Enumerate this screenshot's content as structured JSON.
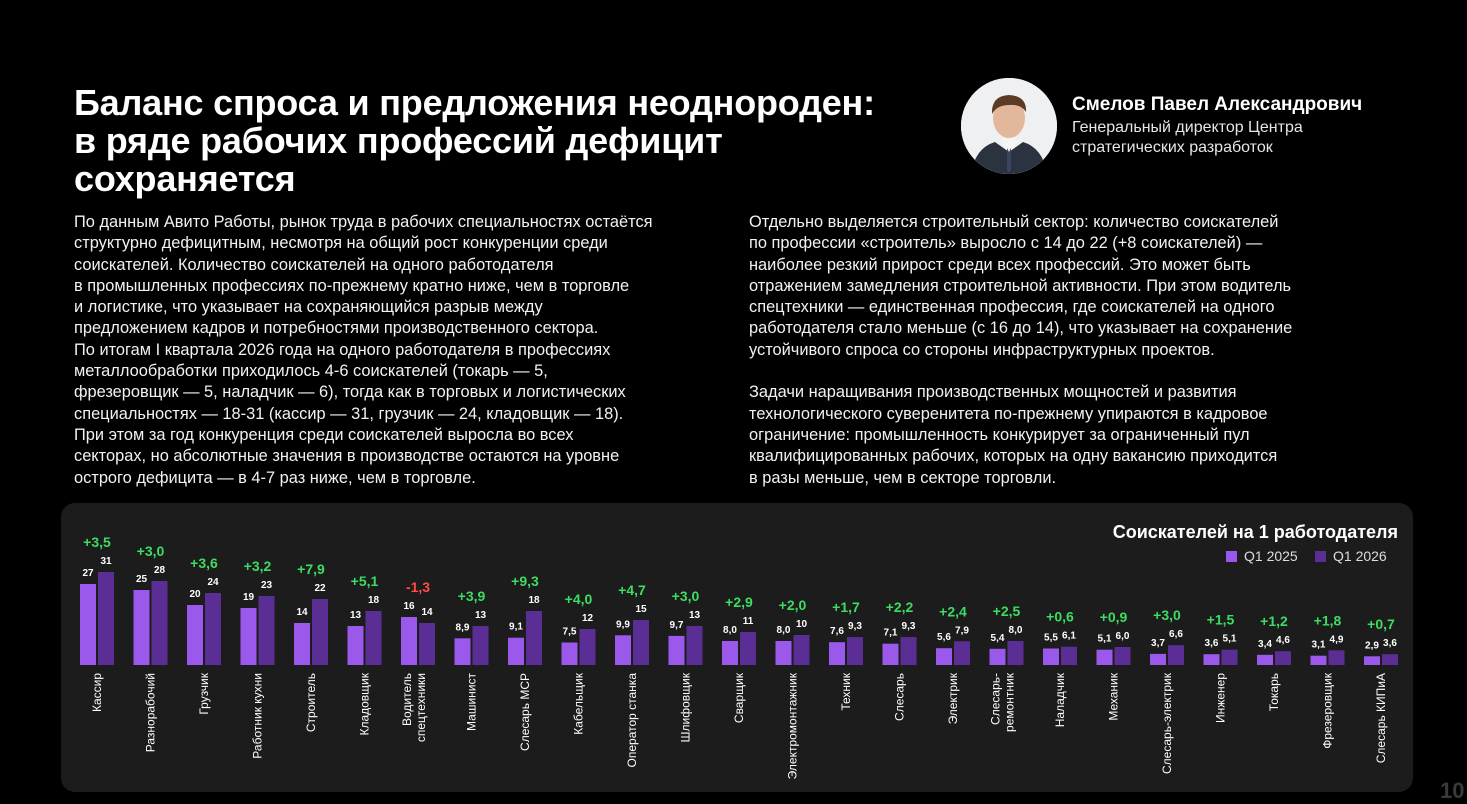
{
  "title_lines": [
    "Баланс спроса и предложения неоднороден:",
    "в ряде рабочих профессий дефицит",
    "сохраняется"
  ],
  "person": {
    "name": "Смелов Павел Александрович",
    "role_lines": [
      "Генеральный директор Центра",
      "стратегических разработок"
    ]
  },
  "left_text_lines": [
    "По данным Авито Работы, рынок труда в рабочих специальностях остаётся",
    "структурно дефицитным, несмотря на общий рост конкуренции среди",
    "соискателей. Количество соискателей на одного работодателя",
    "в промышленных профессиях по-прежнему кратно ниже, чем в торговле",
    "и логистике, что указывает на сохраняющийся разрыв между",
    "предложением кадров и потребностями производственного сектора.",
    "По итогам I квартала 2026 года на одного работодателя в профессиях",
    "металлообработки приходилось 4-6 соискателей (токарь — 5,",
    "фрезеровщик — 5, наладчик — 6), тогда как в торговых и логистических",
    "специальностях — 18-31 (кассир — 31, грузчик — 24, кладовщик — 18).",
    "При этом за год конкуренция среди соискателей выросла во всех",
    "секторах, но абсолютные значения в производстве остаются на уровне",
    "острого дефицита — в 4-7 раз ниже, чем в торговле."
  ],
  "right_text_lines": [
    "Отдельно выделяется строительный сектор: количество соискателей",
    "по профессии «строитель» выросло с 14 до 22 (+8 соискателей) —",
    "наиболее резкий прирост среди всех профессий. Это может быть",
    "отражением замедления строительной активности. При этом водитель",
    "спецтехники — единственная профессия, где соискателей на одного",
    "работодателя стало меньше (с 16 до 14), что указывает на сохранение",
    "устойчивого спроса со стороны инфраструктурных проектов.",
    "",
    "Задачи наращивания производственных мощностей и развития",
    "технологического суверенитета по-прежнему упираются в кадровое",
    "ограничение: промышленность конкурирует за ограниченный пул",
    "квалифицированных рабочих, которых на одну вакансию приходится",
    "в разы меньше, чем в секторе торговли."
  ],
  "page_number": "10",
  "colors": {
    "q1_2025": "#9b59ec",
    "q1_2026": "#5b2e96",
    "positive": "#3ddc62",
    "negative": "#ff4b4b"
  },
  "chart_data": {
    "type": "bar",
    "title": "Соискателей на 1 работодателя",
    "legend_position": "top-right",
    "categories": [
      "Кассир",
      "Разнорабочий",
      "Грузчик",
      "Работник кухни",
      "Строитель",
      "Кладовщик",
      "Водитель спецтехники",
      "Машинист",
      "Слесарь МСР",
      "Кабельщик",
      "Оператор станка",
      "Шлифовщик",
      "Сварщик",
      "Электромонтажник",
      "Техник",
      "Слесарь",
      "Электрик",
      "Слесарь-ремонтник",
      "Наладчик",
      "Механик",
      "Слесарь-электрик",
      "Инженер",
      "Токарь",
      "Фрезеровщик",
      "Слесарь КИПиА"
    ],
    "category_label_lines": [
      [
        "Кассир"
      ],
      [
        "Разнорабочий"
      ],
      [
        "Грузчик"
      ],
      [
        "Работник кухни"
      ],
      [
        "Строитель"
      ],
      [
        "Кладовщик"
      ],
      [
        "Водитель",
        "спецтехники"
      ],
      [
        "Машинист"
      ],
      [
        "Слесарь МСР"
      ],
      [
        "Кабельщик"
      ],
      [
        "Оператор станка"
      ],
      [
        "Шлифовщик"
      ],
      [
        "Сварщик"
      ],
      [
        "Электромонтажник"
      ],
      [
        "Техник"
      ],
      [
        "Слесарь"
      ],
      [
        "Электрик"
      ],
      [
        "Слесарь-",
        "ремонтник"
      ],
      [
        "Наладчик"
      ],
      [
        "Механик"
      ],
      [
        "Слесарь-электрик"
      ],
      [
        "Инженер"
      ],
      [
        "Токарь"
      ],
      [
        "Фрезеровщик"
      ],
      [
        "Слесарь КИПиА"
      ]
    ],
    "series": [
      {
        "name": "Q1 2025",
        "values": [
          27,
          25,
          20,
          19,
          14,
          13,
          16,
          8.9,
          9.1,
          7.5,
          9.9,
          9.7,
          8.0,
          8.0,
          7.6,
          7.1,
          5.6,
          5.4,
          5.5,
          5.1,
          3.7,
          3.6,
          3.4,
          3.1,
          2.9
        ],
        "labels": [
          "27",
          "25",
          "20",
          "19",
          "14",
          "13",
          "16",
          "8,9",
          "9,1",
          "7,5",
          "9,9",
          "9,7",
          "8,0",
          "8,0",
          "7,6",
          "7,1",
          "5,6",
          "5,4",
          "5,5",
          "5,1",
          "3,7",
          "3,6",
          "3,4",
          "3,1",
          "2,9"
        ]
      },
      {
        "name": "Q1 2026",
        "values": [
          31,
          28,
          24,
          23,
          22,
          18,
          14,
          13,
          18,
          12,
          15,
          13,
          11,
          10,
          9.3,
          9.3,
          7.9,
          8.0,
          6.1,
          6.0,
          6.6,
          5.1,
          4.6,
          4.9,
          3.6
        ],
        "labels": [
          "31",
          "28",
          "24",
          "23",
          "22",
          "18",
          "14",
          "13",
          "18",
          "12",
          "15",
          "13",
          "11",
          "10",
          "9,3",
          "9,3",
          "7,9",
          "8,0",
          "6,1",
          "6,0",
          "6,6",
          "5,1",
          "4,6",
          "4,9",
          "3,6"
        ]
      }
    ],
    "changes": [
      "+3,5",
      "+3,0",
      "+3,6",
      "+3,2",
      "+7,9",
      "+5,1",
      "-1,3",
      "+3,9",
      "+9,3",
      "+4,0",
      "+4,7",
      "+3,0",
      "+2,9",
      "+2,0",
      "+1,7",
      "+2,2",
      "+2,4",
      "+2,5",
      "+0,6",
      "+0,9",
      "+3,0",
      "+1,5",
      "+1,2",
      "+1,8",
      "+0,7"
    ]
  }
}
